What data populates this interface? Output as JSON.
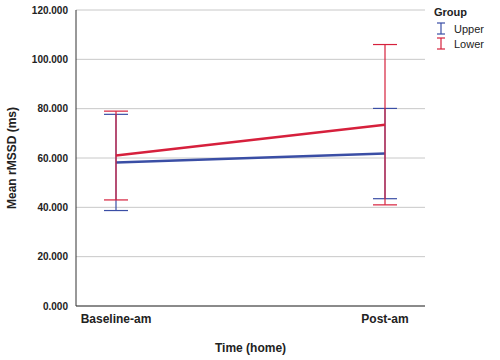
{
  "chart_data": {
    "type": "line",
    "x_label": "Time (home)",
    "y_label": "Mean rMSSD (ms)",
    "legend_title": "Group",
    "legend": "top-right",
    "grid": true,
    "categories": [
      "Baseline-am",
      "Post-am"
    ],
    "ylim": [
      0,
      120
    ],
    "yticks": [
      {
        "value": 0,
        "label": "0.000"
      },
      {
        "value": 20,
        "label": "20.000"
      },
      {
        "value": 40,
        "label": "40.000"
      },
      {
        "value": 60,
        "label": "60.000"
      },
      {
        "value": 80,
        "label": "80.000"
      },
      {
        "value": 100,
        "label": "100.000"
      },
      {
        "value": 120,
        "label": "120.000"
      }
    ],
    "series": [
      {
        "name": "Upper",
        "color": "#3a4ea5",
        "values": [
          58.2,
          61.8
        ],
        "errors": [
          19.5,
          18.3
        ]
      },
      {
        "name": "Lower",
        "color": "#d6203c",
        "values": [
          61.0,
          73.5
        ],
        "errors": [
          18.0,
          32.5
        ]
      }
    ]
  }
}
